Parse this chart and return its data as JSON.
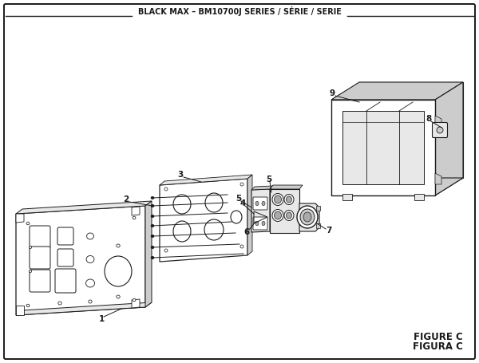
{
  "title": "BLACK MAX – BM10700J SERIES / SÉRIE / SERIE",
  "figure_label": "FIGURE C",
  "figura_label": "FIGURA C",
  "bg_color": "#ffffff",
  "lc": "#1a1a1a",
  "gray_light": "#e8e8e8",
  "gray_mid": "#cccccc",
  "gray_dark": "#aaaaaa"
}
